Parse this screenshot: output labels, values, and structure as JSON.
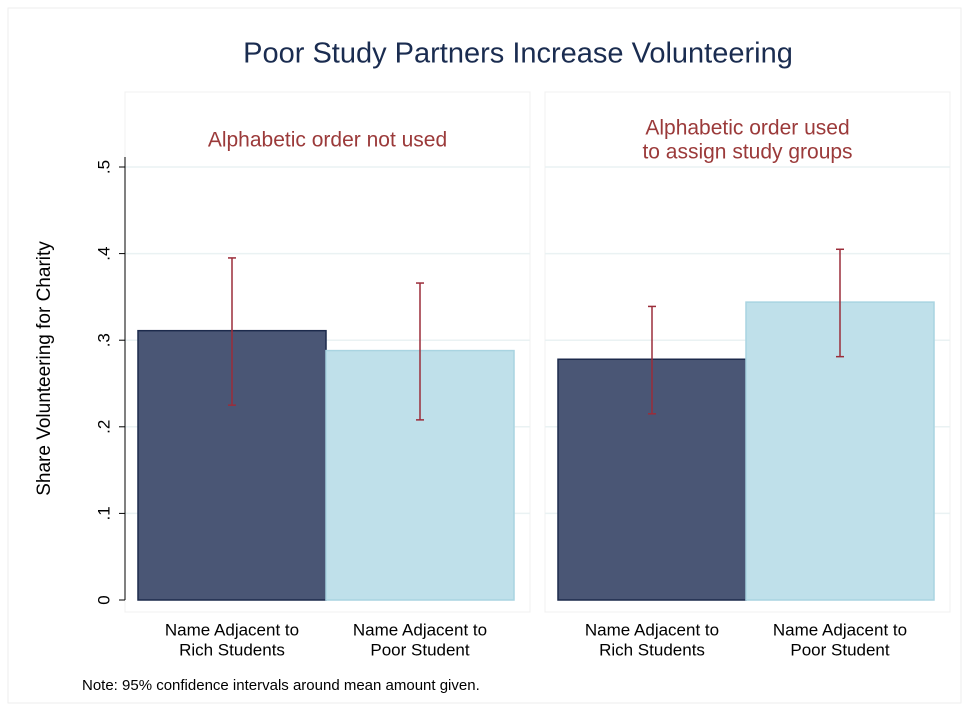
{
  "title": "Poor Study Partners Increase Volunteering",
  "note": "Note: 95% confidence intervals around mean amount given.",
  "chart_data": [
    {
      "type": "bar",
      "title": [
        "Alphabetic order not used"
      ],
      "ylabel": "Share Volunteering for Charity",
      "categories": [
        [
          "Name Adjacent to",
          "Rich Students"
        ],
        [
          "Name Adjacent to",
          "Poor Student"
        ]
      ],
      "values": [
        0.311,
        0.288
      ],
      "ci_low": [
        0.225,
        0.208
      ],
      "ci_high": [
        0.395,
        0.366
      ],
      "colors": [
        "#4a5675",
        "#bfe0ea"
      ],
      "edge_colors": [
        "#1c2a4c",
        "#a9d4e1"
      ],
      "error_color": "#9b2d3a",
      "ylim": [
        0,
        0.5
      ],
      "yticks": [
        0,
        {
          "value": 0.1,
          "label": ".1"
        },
        {
          "value": 0.2,
          "label": ".2"
        },
        {
          "value": 0.3,
          "label": ".3"
        },
        {
          "value": 0.4,
          "label": ".4"
        },
        {
          "value": 0.5,
          "label": ".5"
        }
      ],
      "grid": true
    },
    {
      "type": "bar",
      "title": [
        "Alphabetic order used",
        "to assign study groups"
      ],
      "categories": [
        [
          "Name Adjacent to",
          "Rich Students"
        ],
        [
          "Name Adjacent to",
          "Poor Student"
        ]
      ],
      "values": [
        0.278,
        0.344
      ],
      "ci_low": [
        0.215,
        0.281
      ],
      "ci_high": [
        0.339,
        0.405
      ],
      "colors": [
        "#4a5675",
        "#bfe0ea"
      ],
      "edge_colors": [
        "#1c2a4c",
        "#a9d4e1"
      ],
      "error_color": "#9b2d3a",
      "ylim": [
        0,
        0.5
      ],
      "yticks": [
        0,
        {
          "value": 0.1,
          "label": ".1"
        },
        {
          "value": 0.2,
          "label": ".2"
        },
        {
          "value": 0.3,
          "label": ".3"
        },
        {
          "value": 0.4,
          "label": ".4"
        },
        {
          "value": 0.5,
          "label": ".5"
        }
      ],
      "grid": true
    }
  ]
}
